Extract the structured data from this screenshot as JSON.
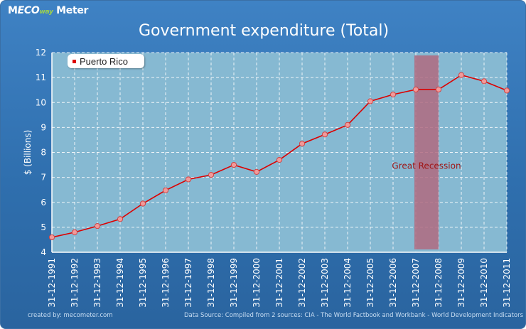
{
  "logo": {
    "part1": "M",
    "part2": "ECO",
    "part3": "way",
    "part4": " Meter"
  },
  "title": "Government expenditure (Total)",
  "ylabel": "$ (Billions)",
  "footer": {
    "left": "created by: mecometer.com",
    "right": "Data Source: Compiled from 2 sources: CIA - The World Factbook and Workbank - World Development Indicators"
  },
  "colors": {
    "plot_bg": "#86b9d2",
    "line": "#dd0000",
    "marker_fill": "#f29a9a",
    "recession": "#b06a80"
  },
  "chart_data": {
    "type": "line",
    "title": "Government expenditure (Total)",
    "xlabel": "",
    "ylabel": "$ (Billions)",
    "ylim": [
      4,
      12
    ],
    "yticks": [
      4,
      5,
      6,
      7,
      8,
      9,
      10,
      11,
      12
    ],
    "grid": true,
    "legend_position": "top-left",
    "categories": [
      "31-12-1991",
      "31-12-1992",
      "31-12-1993",
      "31-12-1994",
      "31-12-1995",
      "31-12-1996",
      "31-12-1997",
      "31-12-1998",
      "31-12-1999",
      "31-12-2000",
      "31-12-2001",
      "31-12-2002",
      "31-12-2003",
      "31-12-2004",
      "31-12-2005",
      "31-12-2006",
      "31-12-2007",
      "31-12-2008",
      "31-12-2009",
      "31-12-2010",
      "31-12-2011"
    ],
    "series": [
      {
        "name": "Puerto Rico",
        "values": [
          4.6,
          4.8,
          5.05,
          5.33,
          5.95,
          6.48,
          6.92,
          7.1,
          7.5,
          7.22,
          7.7,
          8.35,
          8.72,
          9.1,
          10.05,
          10.32,
          10.52,
          10.52,
          11.1,
          10.85,
          10.48
        ]
      }
    ],
    "annotations": [
      {
        "label": "Great Recession",
        "x_start": "31-12-2007",
        "x_end": "31-12-2008"
      }
    ]
  }
}
